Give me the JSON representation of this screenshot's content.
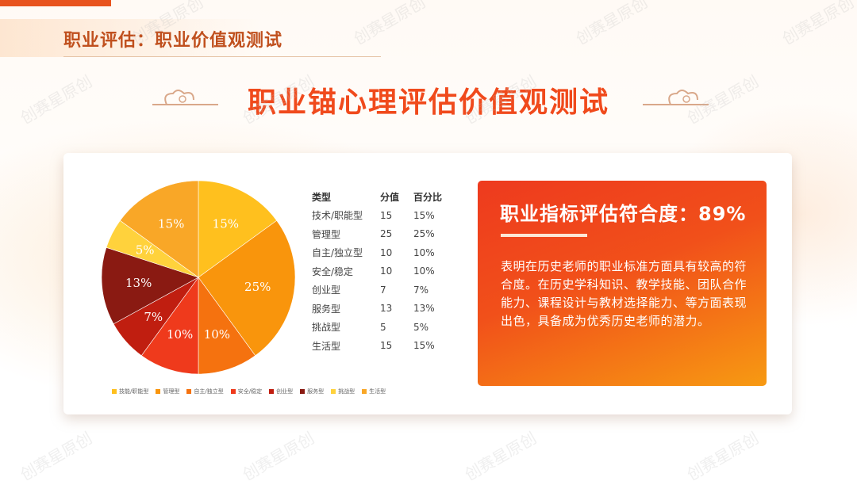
{
  "header": {
    "title": "职业评估：职业价值观测试"
  },
  "main_title": "职业锚心理评估价值观测试",
  "watermark": "创赛星原创",
  "table": {
    "headers": [
      "类型",
      "分值",
      "百分比"
    ],
    "rows": [
      [
        "技术/职能型",
        "15",
        "15%"
      ],
      [
        "管理型",
        "25",
        "25%"
      ],
      [
        "自主/独立型",
        "10",
        "10%"
      ],
      [
        "安全/稳定",
        "10",
        "10%"
      ],
      [
        "创业型",
        "7",
        "7%"
      ],
      [
        "服务型",
        "13",
        "13%"
      ],
      [
        "挑战型",
        "5",
        "5%"
      ],
      [
        "生活型",
        "15",
        "15%"
      ]
    ]
  },
  "summary": {
    "score_title": "职业指标评估符合度：89%",
    "description": "表明在历史老师的职业标准方面具有较高的符合度。在历史学科知识、教学技能、团队合作能力、课程设计与教材选择能力、等方面表现出色，具备成为优秀历史老师的潜力。"
  },
  "colors": {
    "accent": "#f04a1c",
    "header": "#c0501e"
  },
  "chart_data": {
    "type": "pie",
    "categories": [
      "技能/职能型",
      "管理型",
      "自主/独立型",
      "安全/稳定",
      "创业型",
      "服务型",
      "挑战型",
      "生活型"
    ],
    "values": [
      15,
      25,
      10,
      10,
      7,
      13,
      5,
      15
    ],
    "labels": [
      "15%",
      "25%",
      "10%",
      "10%",
      "7%",
      "13%",
      "5%",
      "15%"
    ],
    "colors": [
      "#ffc01e",
      "#f9950c",
      "#f5720f",
      "#ef3a1c",
      "#c01e10",
      "#8a1a12",
      "#ffd23c",
      "#f9a727"
    ],
    "legend_position": "bottom",
    "legend": [
      "技能/职能型",
      "管理型",
      "自主/独立型",
      "安全/稳定",
      "创业型",
      "服务型",
      "挑战型",
      "生活型"
    ]
  }
}
